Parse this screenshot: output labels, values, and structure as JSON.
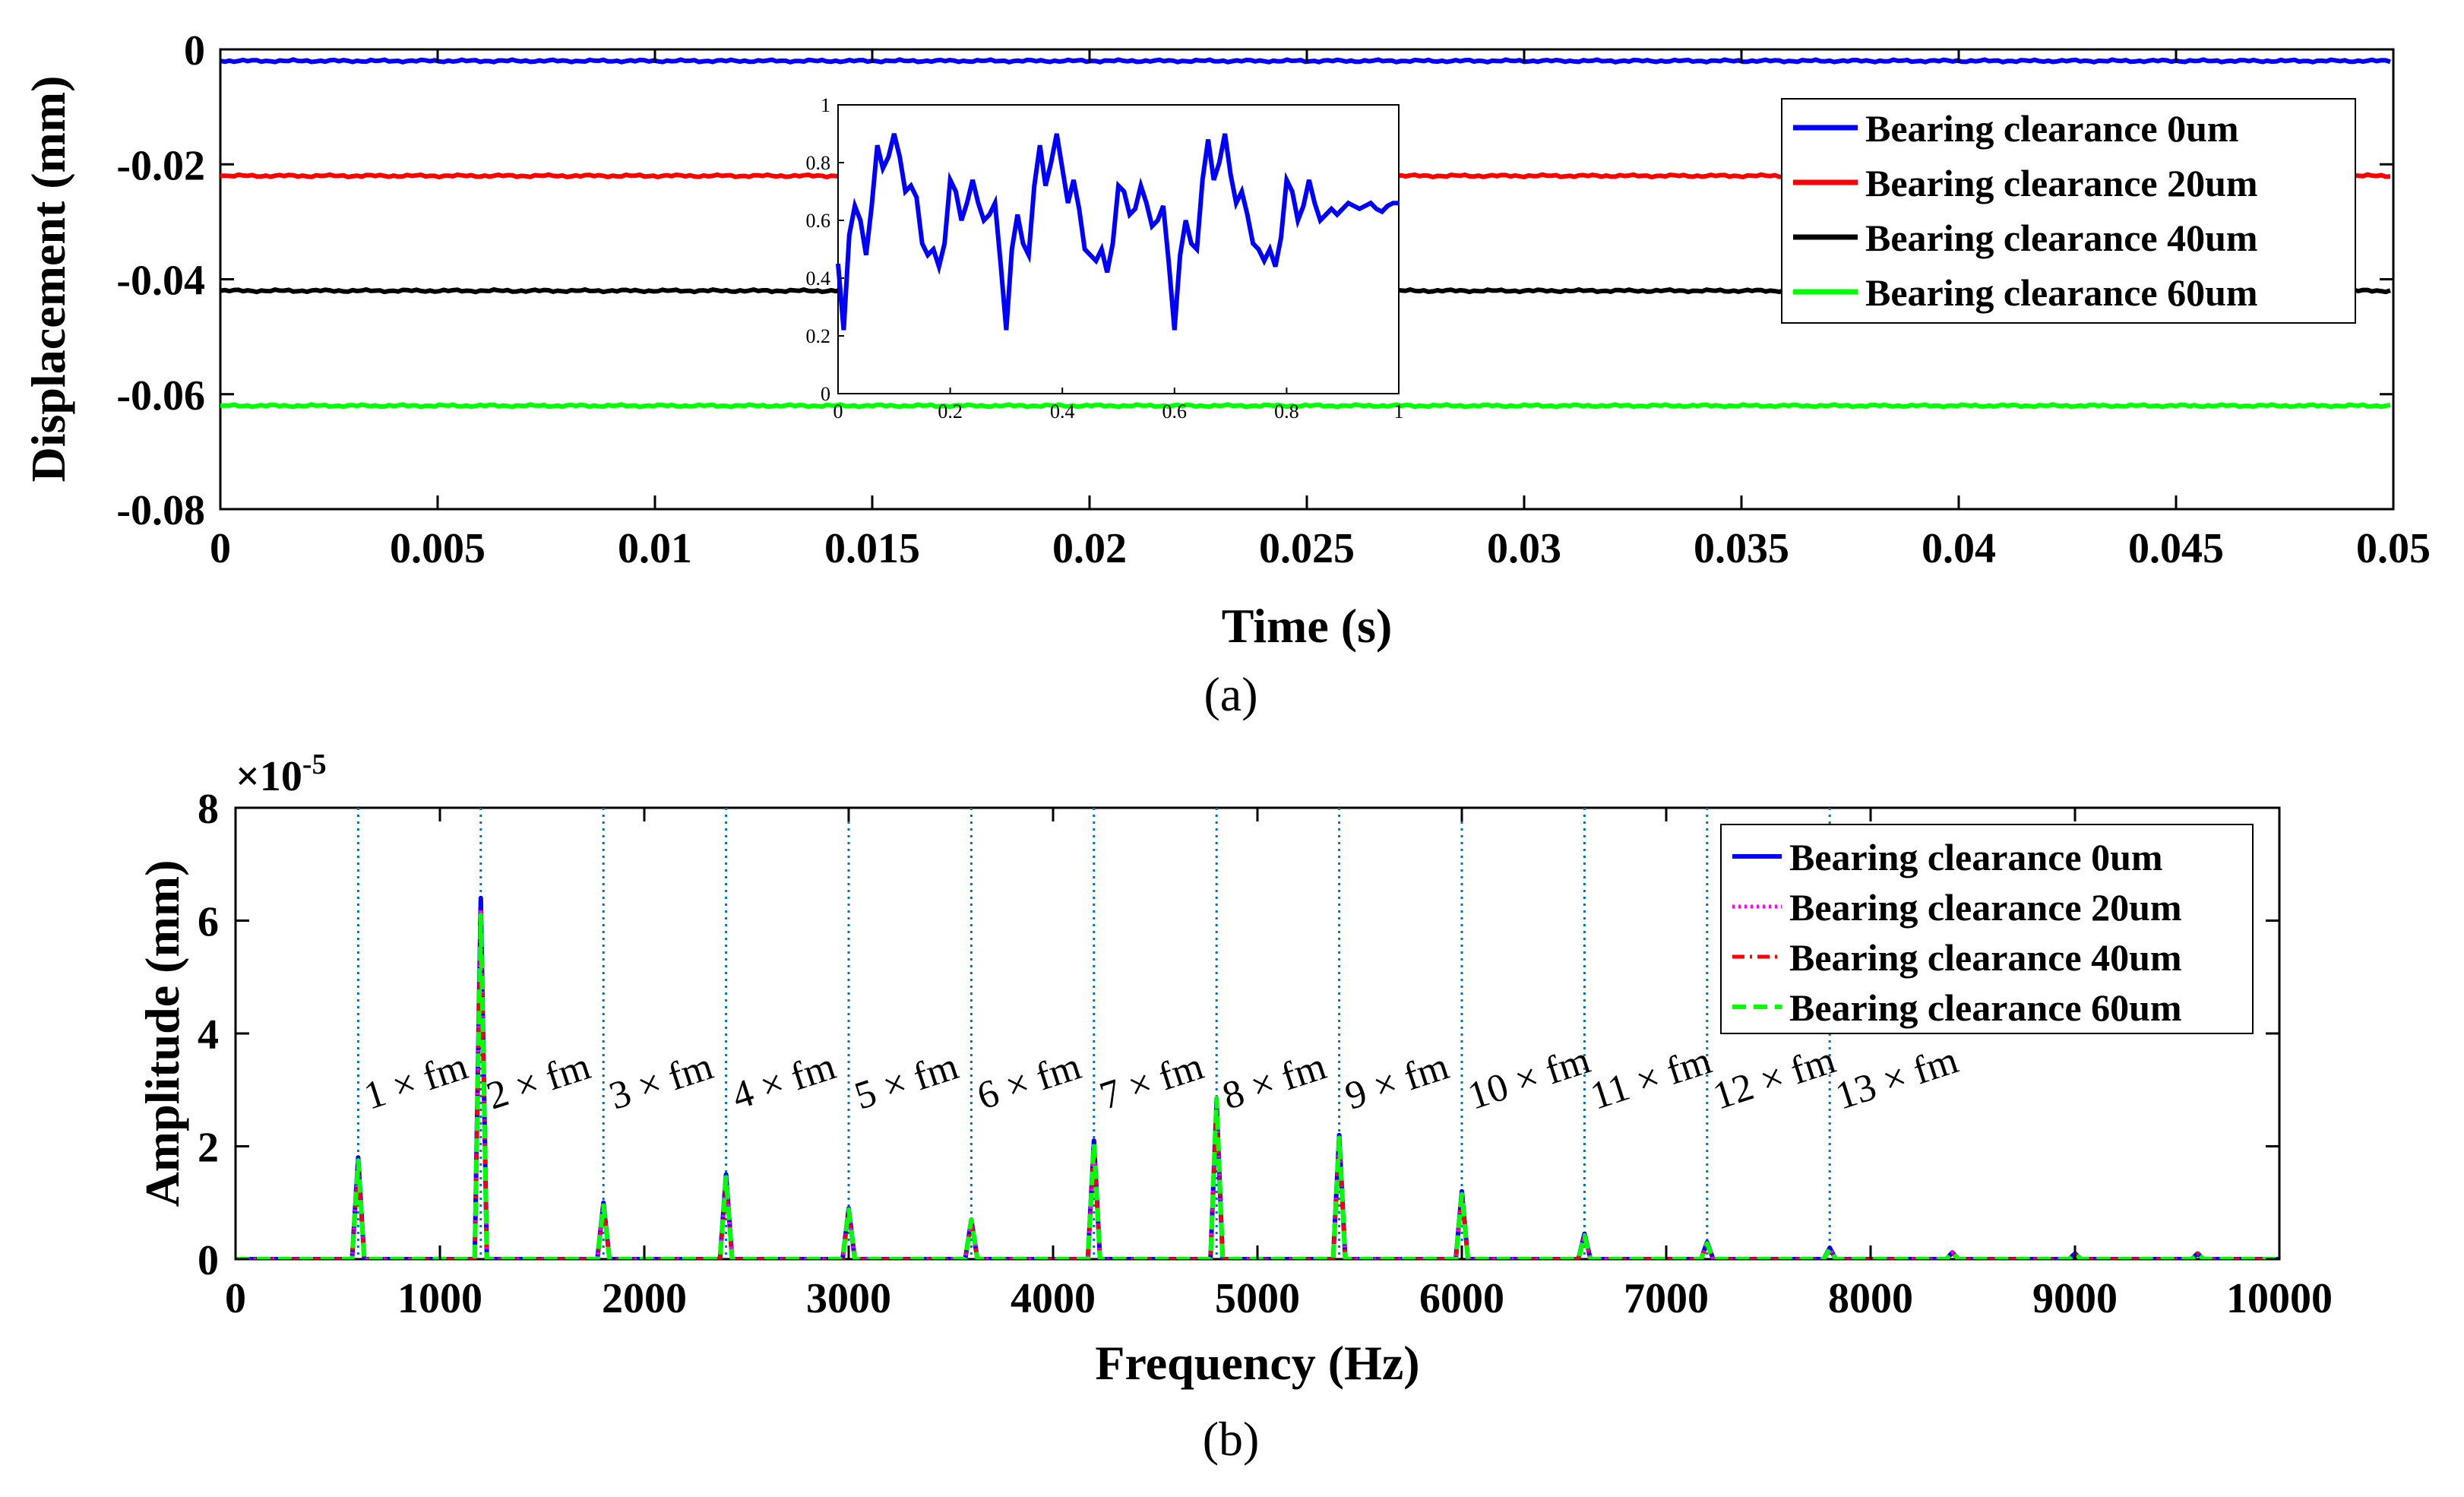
{
  "chart_data": [
    {
      "id": "a",
      "type": "line",
      "caption": "(a)",
      "xlabel": "Time  (s)",
      "ylabel": "Displacement  (mm)",
      "xlim": [
        0,
        0.05
      ],
      "ylim": [
        -0.08,
        0
      ],
      "xticks": [
        "0",
        "0.005",
        "0.01",
        "0.015",
        "0.02",
        "0.025",
        "0.03",
        "0.035",
        "0.04",
        "0.045",
        "0.05"
      ],
      "yticks": [
        "0",
        "-0.02",
        "-0.04",
        "-0.06",
        "-0.08"
      ],
      "series": [
        {
          "name": "Bearing clearance 0um",
          "color": "#0000ff",
          "value": -0.002
        },
        {
          "name": "Bearing clearance 20um",
          "color": "#ff0000",
          "value": -0.022
        },
        {
          "name": "Bearing clearance 40um",
          "color": "#000000",
          "value": -0.042
        },
        {
          "name": "Bearing clearance 60um",
          "color": "#00ff00",
          "value": -0.062
        }
      ],
      "inset": {
        "xlim": [
          0,
          1
        ],
        "ylim": [
          0,
          1
        ],
        "xticks": [
          "0",
          "0.2",
          "0.4",
          "0.6",
          "0.8",
          "1"
        ],
        "yticks": [
          "0",
          "0.2",
          "0.4",
          "0.6",
          "0.8",
          "1"
        ],
        "color": "#0000ff",
        "x": [
          0,
          0.01,
          0.02,
          0.03,
          0.04,
          0.05,
          0.06,
          0.07,
          0.08,
          0.09,
          0.1,
          0.11,
          0.12,
          0.13,
          0.14,
          0.15,
          0.16,
          0.17,
          0.18,
          0.19,
          0.2,
          0.21,
          0.22,
          0.23,
          0.24,
          0.25,
          0.26,
          0.27,
          0.28,
          0.29,
          0.3,
          0.31,
          0.32,
          0.33,
          0.34,
          0.35,
          0.36,
          0.37,
          0.38,
          0.39,
          0.4,
          0.41,
          0.42,
          0.43,
          0.44,
          0.45,
          0.46,
          0.47,
          0.48,
          0.49,
          0.5,
          0.51,
          0.52,
          0.53,
          0.54,
          0.55,
          0.56,
          0.57,
          0.58,
          0.59,
          0.6,
          0.61,
          0.62,
          0.63,
          0.64,
          0.65,
          0.66,
          0.67,
          0.68,
          0.69,
          0.7,
          0.71,
          0.72,
          0.73,
          0.74,
          0.75,
          0.76,
          0.77,
          0.78,
          0.79,
          0.8,
          0.81,
          0.82,
          0.83,
          0.84,
          0.85,
          0.86,
          0.87,
          0.88,
          0.89,
          0.9,
          0.91,
          0.92,
          0.93,
          0.94,
          0.95,
          0.96,
          0.97,
          0.98,
          0.99,
          1.0
        ],
        "y": [
          0.45,
          0.22,
          0.55,
          0.65,
          0.6,
          0.48,
          0.65,
          0.86,
          0.78,
          0.82,
          0.9,
          0.82,
          0.7,
          0.72,
          0.68,
          0.52,
          0.48,
          0.5,
          0.44,
          0.52,
          0.74,
          0.7,
          0.6,
          0.66,
          0.74,
          0.66,
          0.6,
          0.62,
          0.66,
          0.45,
          0.22,
          0.5,
          0.62,
          0.52,
          0.48,
          0.72,
          0.86,
          0.72,
          0.8,
          0.9,
          0.78,
          0.66,
          0.74,
          0.64,
          0.5,
          0.48,
          0.46,
          0.5,
          0.42,
          0.52,
          0.72,
          0.7,
          0.62,
          0.64,
          0.72,
          0.66,
          0.58,
          0.6,
          0.65,
          0.45,
          0.22,
          0.48,
          0.6,
          0.52,
          0.5,
          0.74,
          0.88,
          0.74,
          0.8,
          0.9,
          0.76,
          0.66,
          0.7,
          0.62,
          0.52,
          0.5,
          0.46,
          0.5,
          0.44,
          0.54,
          0.74,
          0.7,
          0.6,
          0.65,
          0.74,
          0.66,
          0.6,
          0.62,
          0.64,
          0.62,
          0.64,
          0.66,
          0.65,
          0.64,
          0.65,
          0.66,
          0.64,
          0.63,
          0.65,
          0.66,
          0.66
        ]
      }
    },
    {
      "id": "b",
      "type": "line",
      "caption": "(b)",
      "xlabel": "Frequency  (Hz)",
      "ylabel": "Amplitude  (mm)",
      "y_multiplier": "×10",
      "y_exponent": "-5",
      "xlim": [
        0,
        10000
      ],
      "ylim": [
        0,
        8
      ],
      "xticks": [
        "0",
        "1000",
        "2000",
        "3000",
        "4000",
        "5000",
        "6000",
        "7000",
        "8000",
        "9000",
        "10000"
      ],
      "yticks": [
        "0",
        "2",
        "4",
        "6",
        "8"
      ],
      "harmonic_lines_hz": [
        600,
        1200,
        1800,
        2400,
        3000,
        3600,
        4200,
        4800,
        5400,
        6000,
        6600,
        7200,
        7800
      ],
      "harmonic_labels": [
        "1 × fm",
        "2 × fm",
        "3 × fm",
        "4 × fm",
        "5 × fm",
        "6 × fm",
        "7 × fm",
        "8 × fm",
        "9 × fm",
        "10 × fm",
        "11 × fm",
        "12 × fm",
        "13 × fm"
      ],
      "peaks_hz": [
        600,
        1200,
        1800,
        2400,
        3000,
        3600,
        4200,
        4800,
        5400,
        6000,
        6600,
        7200,
        7800,
        8400,
        9000,
        9600
      ],
      "series": [
        {
          "name": "Bearing clearance 0um",
          "color": "#0000ff",
          "style": "solid",
          "values": [
            1.8,
            6.4,
            1.0,
            1.5,
            0.9,
            0.7,
            2.1,
            2.8,
            2.2,
            1.2,
            0.45,
            0.3,
            0.2,
            0.12,
            0.1,
            0.1
          ]
        },
        {
          "name": "Bearing clearance 20um",
          "color": "#ff00ff",
          "style": "dotted",
          "values": [
            1.7,
            6.2,
            1.0,
            1.4,
            0.85,
            0.7,
            2.0,
            2.8,
            2.1,
            1.2,
            0.4,
            0.28,
            0.18,
            0.12,
            0.1,
            0.1
          ]
        },
        {
          "name": "Bearing clearance 40um",
          "color": "#ff0000",
          "style": "dashdot",
          "values": [
            1.6,
            6.0,
            0.9,
            1.3,
            0.8,
            0.65,
            1.9,
            2.7,
            2.0,
            1.1,
            0.4,
            0.25,
            0.15,
            0.1,
            0.08,
            0.1
          ]
        },
        {
          "name": "Bearing clearance 60um",
          "color": "#00ff00",
          "style": "dashed",
          "values": [
            1.75,
            6.1,
            0.95,
            1.45,
            0.88,
            0.7,
            2.05,
            2.85,
            2.15,
            1.15,
            0.42,
            0.28,
            0.18,
            0.12,
            0.1,
            0.1
          ]
        }
      ]
    }
  ]
}
